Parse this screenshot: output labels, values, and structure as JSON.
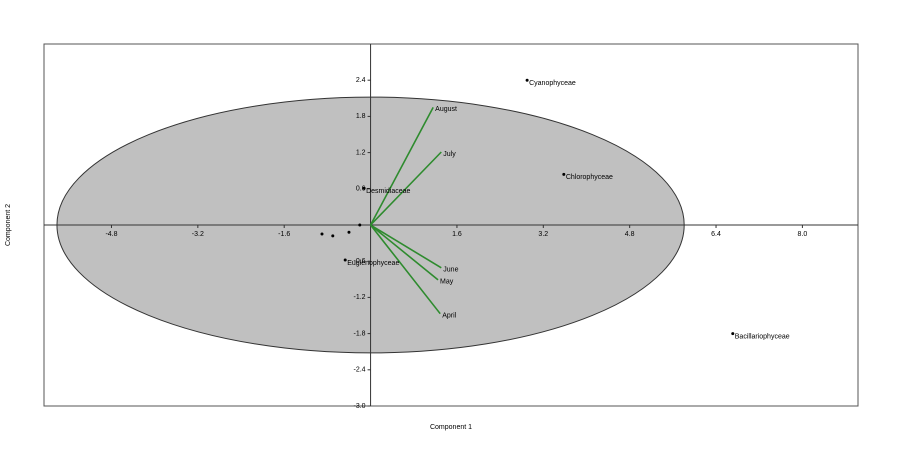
{
  "chart_data": {
    "type": "biplot",
    "x_label": "Component 1",
    "y_label": "Component 2",
    "xlim": [
      -6.05,
      9.03
    ],
    "ylim": [
      -3,
      3
    ],
    "xticks": [
      -4.8,
      -3.2,
      -1.6,
      1.6,
      3.2,
      4.8,
      6.4,
      {
        "value": 8,
        "label": "8.0"
      }
    ],
    "yticks": [
      2.4,
      1.8,
      1.2,
      0.6,
      -0.6,
      -1.2,
      -1.8,
      -2.4,
      {
        "value": -3,
        "label": "-3.0"
      }
    ],
    "ellipse": {
      "cx": 0,
      "cy": 0,
      "rx": 5.81,
      "ry": 2.12,
      "color": "#c0c0c0"
    },
    "points": {
      "color": "#000000",
      "labels": [
        "Cyanophyceae",
        "Chlorophyceae",
        "Bacillariophyceae",
        "Desmidiaceae",
        "Euglenophyceae",
        null,
        null,
        null,
        null
      ],
      "x": [
        2.9,
        3.58,
        6.71,
        -0.12,
        -0.47,
        -0.9,
        -0.7,
        -0.4,
        -0.2
      ],
      "y": [
        2.4,
        0.84,
        -1.8,
        0.61,
        -0.58,
        -0.15,
        -0.18,
        -0.12,
        0.0
      ]
    },
    "vectors": {
      "color": "#2e8b2e",
      "label_color": "#2020c0",
      "labels": [
        "August",
        "July",
        "June",
        "May",
        "April"
      ],
      "x": [
        1.16,
        1.31,
        1.31,
        1.25,
        1.29
      ],
      "y": [
        1.95,
        1.21,
        -0.71,
        -0.91,
        -1.47
      ]
    }
  }
}
